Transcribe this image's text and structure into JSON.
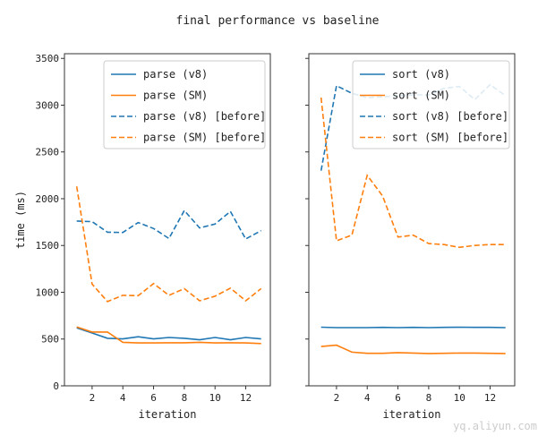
{
  "title": "final performance vs baseline",
  "watermark": "云栖社区 yq.aliyun.com",
  "chart_data": [
    {
      "type": "line",
      "xlabel": "iteration",
      "ylabel": "time (ms)",
      "xlim": [
        0.2,
        13.6
      ],
      "ylim": [
        0,
        3550
      ],
      "x": [
        1,
        2,
        3,
        4,
        5,
        6,
        7,
        8,
        9,
        10,
        11,
        12,
        13
      ],
      "xticks": [
        2,
        4,
        6,
        8,
        10,
        12
      ],
      "yticks": [
        0,
        500,
        1000,
        1500,
        2000,
        2500,
        3000,
        3500
      ],
      "legend_position": "top-right",
      "series": [
        {
          "name": "parse (v8)",
          "color": "#1f77b4",
          "style": "solid",
          "values": [
            620,
            565,
            508,
            501,
            524,
            501,
            517,
            508,
            492,
            517,
            492,
            517,
            501
          ]
        },
        {
          "name": "parse (SM)",
          "color": "#ff7f0e",
          "style": "solid",
          "values": [
            630,
            575,
            575,
            465,
            458,
            458,
            460,
            460,
            465,
            458,
            460,
            458,
            452
          ]
        },
        {
          "name": "parse (v8) [before]",
          "color": "#1f77b4",
          "style": "dashed",
          "values": [
            1762,
            1755,
            1642,
            1639,
            1745,
            1681,
            1575,
            1874,
            1688,
            1729,
            1864,
            1569,
            1659
          ]
        },
        {
          "name": "parse (SM) [before]",
          "color": "#ff7f0e",
          "style": "dashed",
          "values": [
            2131,
            1087,
            900,
            967,
            964,
            1093,
            967,
            1039,
            909,
            958,
            1044,
            909,
            1039
          ]
        }
      ]
    },
    {
      "type": "line",
      "xlabel": "iteration",
      "ylabel": "",
      "xlim": [
        0.2,
        13.6
      ],
      "ylim": [
        0,
        3550
      ],
      "x": [
        1,
        2,
        3,
        4,
        5,
        6,
        7,
        8,
        9,
        10,
        11,
        12,
        13
      ],
      "xticks": [
        2,
        4,
        6,
        8,
        10,
        12
      ],
      "yticks": [
        0,
        500,
        1000,
        1500,
        2000,
        2500,
        3000,
        3500
      ],
      "legend_position": "top-right",
      "series": [
        {
          "name": "sort (v8)",
          "color": "#1f77b4",
          "style": "solid",
          "values": [
            627,
            622,
            622,
            622,
            625,
            622,
            625,
            622,
            625,
            627,
            625,
            625,
            622
          ]
        },
        {
          "name": "sort (SM)",
          "color": "#ff7f0e",
          "style": "solid",
          "values": [
            420,
            434,
            360,
            347,
            347,
            355,
            350,
            345,
            347,
            350,
            350,
            347,
            345
          ]
        },
        {
          "name": "sort (v8) [before]",
          "color": "#1f77b4",
          "style": "dashed",
          "values": [
            2300,
            3207,
            3127,
            3079,
            3090,
            3100,
            3110,
            3110,
            3180,
            3200,
            3060,
            3220,
            3100
          ]
        },
        {
          "name": "sort (SM) [before]",
          "color": "#ff7f0e",
          "style": "dashed",
          "values": [
            3080,
            1550,
            1610,
            2250,
            2030,
            1590,
            1610,
            1520,
            1510,
            1480,
            1500,
            1510,
            1510
          ]
        }
      ]
    }
  ]
}
